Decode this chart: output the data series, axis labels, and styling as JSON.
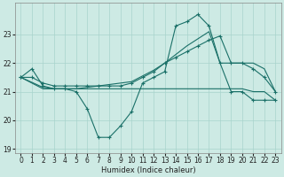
{
  "xlabel": "Humidex (Indice chaleur)",
  "bg_color": "#cdeae4",
  "grid_color": "#a8d4cc",
  "line_color": "#1a7068",
  "xlim_min": -0.5,
  "xlim_max": 23.5,
  "ylim_min": 18.85,
  "ylim_max": 24.1,
  "yticks": [
    19,
    20,
    21,
    22,
    23
  ],
  "xticks": [
    0,
    1,
    2,
    3,
    4,
    5,
    6,
    7,
    8,
    9,
    10,
    11,
    12,
    13,
    14,
    15,
    16,
    17,
    18,
    19,
    20,
    21,
    22,
    23
  ],
  "s1_x": [
    0,
    1,
    2,
    3,
    4,
    5,
    6,
    7,
    8,
    9,
    10,
    11,
    12,
    13,
    14,
    15,
    16,
    17,
    18,
    19,
    20,
    21,
    22,
    23
  ],
  "s1_y": [
    21.5,
    21.8,
    21.2,
    21.1,
    21.1,
    21.0,
    20.4,
    19.4,
    19.4,
    19.8,
    20.3,
    21.3,
    21.5,
    21.7,
    23.3,
    23.45,
    23.7,
    23.3,
    22.0,
    21.0,
    21.0,
    20.7,
    20.7,
    20.7
  ],
  "s2_x": [
    0,
    1,
    2,
    3,
    4,
    5,
    6,
    7,
    8,
    9,
    10,
    11,
    12,
    13,
    14,
    15,
    16,
    17,
    18,
    19,
    20,
    21,
    22,
    23
  ],
  "s2_y": [
    21.5,
    21.5,
    21.3,
    21.2,
    21.2,
    21.2,
    21.2,
    21.2,
    21.2,
    21.2,
    21.3,
    21.5,
    21.7,
    22.0,
    22.2,
    22.4,
    22.6,
    22.8,
    22.95,
    22.0,
    22.0,
    21.8,
    21.5,
    21.0
  ],
  "s3_x": [
    0,
    2,
    3,
    4,
    5,
    9,
    10,
    11,
    12,
    13,
    14,
    15,
    16,
    17,
    18,
    19,
    20,
    21,
    22,
    23
  ],
  "s3_y": [
    21.5,
    21.1,
    21.1,
    21.1,
    21.1,
    21.1,
    21.1,
    21.1,
    21.1,
    21.1,
    21.1,
    21.1,
    21.1,
    21.1,
    21.1,
    21.1,
    21.1,
    21.0,
    21.0,
    20.7
  ],
  "s4_x": [
    0,
    2,
    3,
    4,
    5,
    10,
    11,
    12,
    13,
    14,
    15,
    16,
    17,
    18,
    19,
    20,
    21,
    22,
    23
  ],
  "s4_y": [
    21.5,
    21.15,
    21.1,
    21.1,
    21.1,
    21.35,
    21.55,
    21.75,
    22.0,
    22.3,
    22.6,
    22.85,
    23.1,
    22.0,
    22.0,
    22.0,
    22.0,
    21.8,
    21.0
  ]
}
